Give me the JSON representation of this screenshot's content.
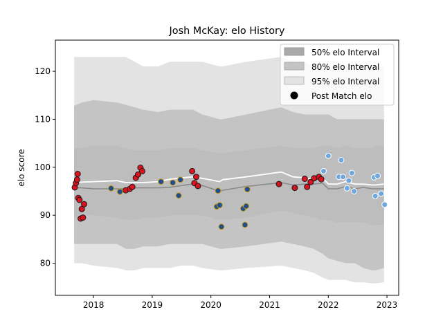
{
  "chart_data": {
    "type": "scatter",
    "title": "Josh McKay: elo History",
    "xlabel": "",
    "ylabel": "elo score",
    "xlim": [
      2017.35,
      2023.2
    ],
    "ylim": [
      73.3,
      126.5
    ],
    "xticks": [
      2018,
      2019,
      2020,
      2021,
      2022,
      2023
    ],
    "yticks": [
      80,
      90,
      100,
      110,
      120
    ],
    "legend": {
      "placement": "top-right",
      "entries": [
        "50% elo Interval",
        "80% elo Interval",
        "95% elo Interval",
        "Post Match elo"
      ]
    },
    "colors": {
      "band50": "#a9a9a9",
      "band80": "#c4c4c4",
      "band95": "#e3e3e3",
      "median_line": "#8a8a8a",
      "mean_line": "#ffffff",
      "point_red_fill": "#d9141e",
      "point_navy_fill": "#1f4e8c",
      "point_dark_fill": "#c8141e",
      "point_light_fill": "#6ea8dc"
    },
    "intervals": {
      "x": [
        2017.67,
        2017.8,
        2018.0,
        2018.4,
        2018.55,
        2018.7,
        2018.85,
        2019.1,
        2019.3,
        2019.5,
        2019.7,
        2019.85,
        2020.15,
        2020.2,
        2020.6,
        2021.2,
        2021.4,
        2021.6,
        2021.75,
        2021.9,
        2022.0,
        2022.15,
        2022.3,
        2022.45,
        2022.6,
        2022.75,
        2022.8,
        2022.95
      ],
      "p975": [
        123.0,
        123.0,
        123.0,
        123.0,
        123.0,
        122.0,
        121.0,
        121.0,
        122.0,
        122.0,
        122.0,
        122.0,
        121.0,
        121.0,
        122.0,
        123.0,
        122.0,
        122.0,
        121.0,
        121.0,
        121.0,
        121.0,
        121.0,
        121.0,
        121.0,
        121.0,
        121.0,
        121.0
      ],
      "p90": [
        112.8,
        113.5,
        114.0,
        113.5,
        113.0,
        112.5,
        112.0,
        111.5,
        112.0,
        112.0,
        112.0,
        111.0,
        110.0,
        110.0,
        111.0,
        112.5,
        111.5,
        111.0,
        111.0,
        111.0,
        111.0,
        110.0,
        110.0,
        110.0,
        110.0,
        110.0,
        110.0,
        110.0
      ],
      "p75": [
        104.0,
        104.0,
        104.5,
        104.5,
        104.0,
        103.5,
        103.5,
        103.5,
        104.0,
        104.0,
        104.0,
        103.5,
        103.0,
        103.0,
        103.5,
        104.5,
        104.0,
        104.0,
        104.0,
        104.5,
        104.5,
        104.0,
        104.5,
        104.0,
        104.0,
        104.0,
        104.5,
        104.5
      ],
      "p25": [
        89.5,
        90.0,
        90.0,
        89.5,
        89.0,
        89.0,
        89.5,
        89.5,
        90.0,
        90.0,
        90.0,
        90.0,
        89.0,
        89.0,
        89.5,
        91.0,
        90.5,
        90.0,
        89.5,
        89.0,
        89.0,
        88.5,
        88.5,
        88.5,
        88.5,
        88.0,
        88.0,
        88.0
      ],
      "p10": [
        84.0,
        84.0,
        84.0,
        84.0,
        83.0,
        83.0,
        83.5,
        83.5,
        84.0,
        84.0,
        84.0,
        84.0,
        83.0,
        83.0,
        83.5,
        84.5,
        84.0,
        83.5,
        83.0,
        82.0,
        81.0,
        80.5,
        80.0,
        80.0,
        79.0,
        78.5,
        78.5,
        79.0
      ],
      "p025": [
        80.0,
        80.0,
        79.5,
        79.0,
        78.5,
        78.5,
        79.0,
        79.0,
        79.0,
        79.5,
        79.5,
        79.0,
        78.5,
        78.5,
        79.0,
        79.5,
        79.0,
        78.5,
        78.0,
        77.0,
        76.5,
        76.5,
        76.5,
        76.0,
        76.0,
        75.8,
        75.8,
        76.0
      ],
      "median": [
        95.7,
        95.7,
        95.5,
        95.5,
        95.5,
        95.7,
        95.7,
        95.7,
        95.8,
        96.2,
        96.5,
        96.2,
        95.0,
        95.2,
        96.0,
        96.8,
        96.3,
        96.5,
        96.5,
        96.7,
        95.5,
        95.5,
        96.0,
        95.5,
        95.8,
        95.5,
        95.5,
        95.5
      ],
      "mean": [
        96.8,
        96.9,
        97.0,
        97.2,
        96.8,
        96.8,
        96.8,
        97.0,
        97.5,
        97.8,
        98.0,
        97.7,
        97.0,
        97.4,
        98.0,
        99.0,
        98.0,
        97.8,
        97.5,
        97.8,
        96.5,
        96.5,
        97.0,
        96.5,
        96.5,
        96.3,
        96.3,
        96.5
      ]
    },
    "series": [
      {
        "fill": "#d9141e",
        "edge": "#1a1a1a",
        "points": [
          [
            2017.68,
            95.8
          ],
          [
            2017.7,
            96.7
          ],
          [
            2017.72,
            97.4
          ],
          [
            2017.73,
            98.6
          ],
          [
            2017.74,
            93.6
          ],
          [
            2017.76,
            93.2
          ],
          [
            2017.78,
            89.3
          ],
          [
            2017.8,
            91.3
          ],
          [
            2017.82,
            89.5
          ],
          [
            2017.84,
            92.3
          ],
          [
            2018.55,
            95.2
          ],
          [
            2018.62,
            95.5
          ],
          [
            2018.66,
            95.9
          ],
          [
            2018.72,
            97.8
          ],
          [
            2018.76,
            98.5
          ],
          [
            2018.8,
            99.9
          ],
          [
            2018.83,
            99.2
          ],
          [
            2019.68,
            99.2
          ],
          [
            2019.72,
            96.7
          ],
          [
            2019.75,
            98.0
          ],
          [
            2019.78,
            96.1
          ],
          [
            2021.6,
            97.6
          ],
          [
            2021.64,
            95.9
          ],
          [
            2021.7,
            96.9
          ],
          [
            2021.76,
            97.7
          ],
          [
            2021.84,
            98.0
          ],
          [
            2021.88,
            97.5
          ]
        ]
      },
      {
        "fill": "#1f4e8c",
        "edge": "#d4a017",
        "points": [
          [
            2018.3,
            95.6
          ],
          [
            2018.45,
            94.9
          ],
          [
            2019.15,
            97.0
          ],
          [
            2019.35,
            96.8
          ],
          [
            2019.45,
            94.1
          ],
          [
            2019.48,
            97.4
          ],
          [
            2020.1,
            91.8
          ],
          [
            2020.12,
            95.1
          ],
          [
            2020.15,
            92.1
          ],
          [
            2020.18,
            87.6
          ],
          [
            2020.55,
            91.4
          ],
          [
            2020.58,
            88.0
          ],
          [
            2020.6,
            91.9
          ],
          [
            2020.62,
            95.4
          ]
        ]
      },
      {
        "fill": "#c8141e",
        "edge": "#1a1a1a",
        "points": [
          [
            2021.16,
            96.5
          ],
          [
            2021.43,
            95.7
          ]
        ]
      },
      {
        "fill": "#6ea8dc",
        "edge": "#ffffff",
        "points": [
          [
            2021.92,
            99.2
          ],
          [
            2022.0,
            102.4
          ],
          [
            2022.18,
            98.0
          ],
          [
            2022.22,
            101.5
          ],
          [
            2022.25,
            98.0
          ],
          [
            2022.32,
            95.6
          ],
          [
            2022.35,
            97.2
          ],
          [
            2022.4,
            98.8
          ],
          [
            2022.44,
            95.0
          ],
          [
            2022.78,
            97.9
          ],
          [
            2022.8,
            94.0
          ],
          [
            2022.84,
            98.2
          ],
          [
            2022.9,
            94.5
          ],
          [
            2022.96,
            92.2
          ]
        ]
      }
    ]
  }
}
